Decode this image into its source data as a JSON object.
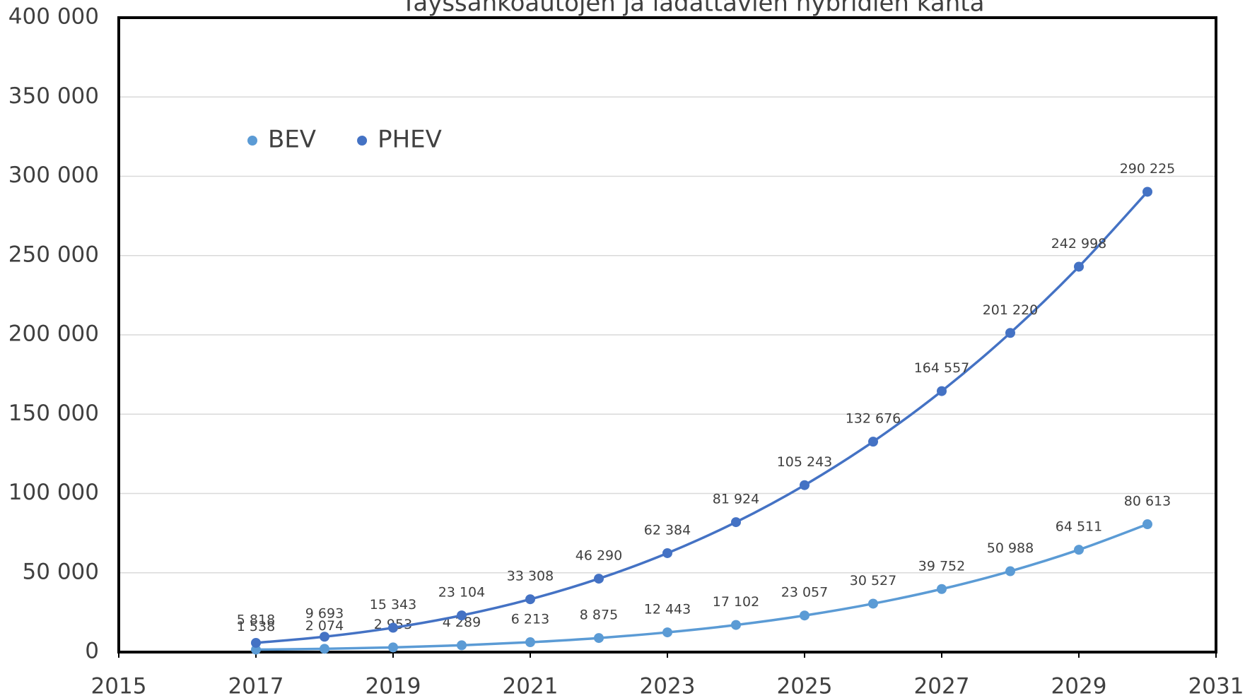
{
  "chart_data": {
    "type": "scatter",
    "title": "Täyssähköautojen ja ladattavien hybridien kanta",
    "x": [
      2017,
      2018,
      2019,
      2020,
      2021,
      2022,
      2023,
      2024,
      2025,
      2026,
      2027,
      2028,
      2029,
      2030
    ],
    "series": [
      {
        "name": "BEV",
        "color": "#5b9bd5",
        "values": [
          1538,
          2074,
          2953,
          4289,
          6213,
          8875,
          12443,
          17102,
          23057,
          30527,
          39752,
          50988,
          64511,
          80613
        ],
        "value_labels": [
          "1 538",
          "2 074",
          "2 953",
          "4 289",
          "6 213",
          "8 875",
          "12 443",
          "17 102",
          "23 057",
          "30 527",
          "39 752",
          "50 988",
          "64 511",
          "80 613"
        ]
      },
      {
        "name": "PHEV",
        "color": "#4472c4",
        "values": [
          5818,
          9693,
          15343,
          23104,
          33308,
          46290,
          62384,
          81924,
          105243,
          132676,
          164557,
          201220,
          242998,
          290225
        ],
        "value_labels": [
          "5 818",
          "9 693",
          "15 343",
          "23 104",
          "33 308",
          "46 290",
          "62 384",
          "81 924",
          "105 243",
          "132 676",
          "164 557",
          "201 220",
          "242 998",
          "290 225"
        ]
      }
    ],
    "xlim": [
      2015,
      2031
    ],
    "xticks": [
      2015,
      2017,
      2019,
      2021,
      2023,
      2025,
      2027,
      2029,
      2031
    ],
    "ylim": [
      0,
      400000
    ],
    "yticks": [
      {
        "value": 0,
        "label": "0"
      },
      {
        "value": 50000,
        "label": "50 000"
      },
      {
        "value": 100000,
        "label": "100 000"
      },
      {
        "value": 150000,
        "label": "150 000"
      },
      {
        "value": 200000,
        "label": "200 000"
      },
      {
        "value": 250000,
        "label": "250 000"
      },
      {
        "value": 300000,
        "label": "300 000"
      },
      {
        "value": 350000,
        "label": "350 000"
      },
      {
        "value": 400000,
        "label": "400 000"
      }
    ],
    "grid": true,
    "legend": "top-left"
  }
}
